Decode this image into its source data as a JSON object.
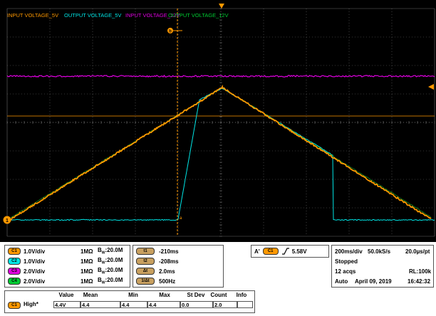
{
  "scope": {
    "trace_labels": {
      "input_5v": "INPUT VOLTAGE_5V",
      "output_5v": "OUTPUT VOLTAGE_5V",
      "input_12v": "INPUT VOLTAGE_12V",
      "output_12v": "OUTPUT VOLTAGE_12V"
    },
    "cursor_a_marker": "a",
    "cursor_b_marker": "b",
    "ground_marker": "1",
    "colors": {
      "ch1": "#ff9900",
      "ch2": "#00e5e5",
      "ch3": "#e000e0",
      "ch4": "#00cc33",
      "grid": "#6a6a6a",
      "trigger": "#ff9900"
    }
  },
  "channels": [
    {
      "id": "C1",
      "scale": "1.0V/div",
      "impedance": "1MΩ",
      "bw_prefix": "B",
      "bw_sub": "W",
      "bw": ":20.0M",
      "color": "#ff9900"
    },
    {
      "id": "C2",
      "scale": "1.0V/div",
      "impedance": "1MΩ",
      "bw_prefix": "B",
      "bw_sub": "W",
      "bw": ":20.0M",
      "color": "#00e5e5"
    },
    {
      "id": "C3",
      "scale": "2.0V/div",
      "impedance": "1MΩ",
      "bw_prefix": "B",
      "bw_sub": "W",
      "bw": ":20.0M",
      "color": "#e000e0"
    },
    {
      "id": "C4",
      "scale": "2.0V/div",
      "impedance": "1MΩ",
      "bw_prefix": "B",
      "bw_sub": "W",
      "bw": ":20.0M",
      "color": "#00cc33"
    }
  ],
  "cursors": [
    {
      "id": "t1",
      "value": "-210ms"
    },
    {
      "id": "t2",
      "value": "-208ms"
    },
    {
      "id": "Δt",
      "value": "2.0ms"
    },
    {
      "id": "1/Δt",
      "value": "500Hz"
    }
  ],
  "trigger": {
    "source_prefix": "A'",
    "channel": "C1",
    "slope_icon": "rising-edge",
    "level": "5.58V"
  },
  "timebase": {
    "horizontal": "200ms/div",
    "sample_rate": "50.0kS/s",
    "resolution": "20.0µs/pt",
    "status": "Stopped",
    "acqs": "12 acqs",
    "record_length": "RL:100k",
    "mode": "Auto",
    "date": "April 09, 2019",
    "time": "16:42:32"
  },
  "measurements": {
    "headers": [
      "Value",
      "Mean",
      "Min",
      "Max",
      "St Dev",
      "Count",
      "Info"
    ],
    "rows": [
      {
        "channel": "C1",
        "name": "High*",
        "value": "4.4V",
        "mean": "4.4",
        "min": "4.4",
        "max": "4.4",
        "stdev": "0.0",
        "count": "2.0",
        "info": ""
      }
    ]
  }
}
